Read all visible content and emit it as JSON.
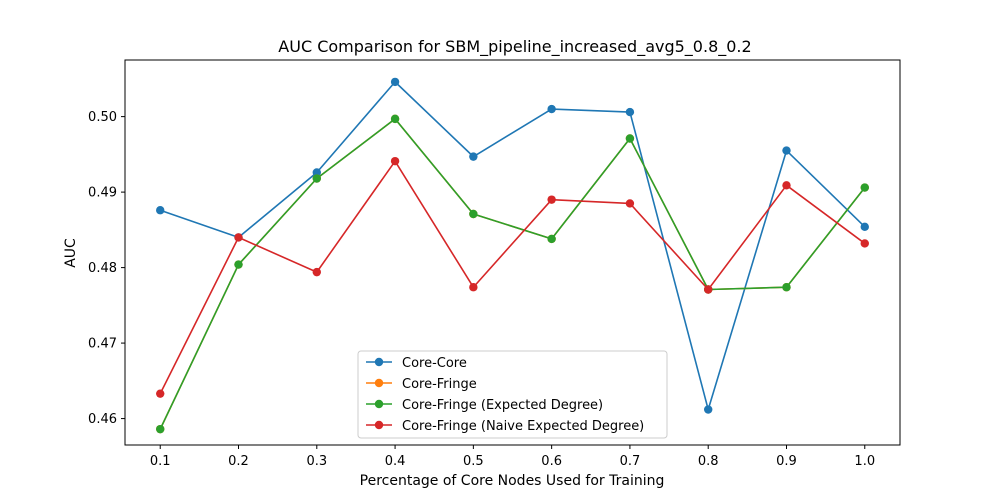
{
  "chart_data": {
    "type": "line",
    "title": "AUC Comparison for SBM_pipeline_increased_avg5_0.8_0.2",
    "xlabel": "Percentage of Core Nodes Used for Training",
    "ylabel": "AUC",
    "x": [
      0.1,
      0.2,
      0.3,
      0.4,
      0.5,
      0.6,
      0.7,
      0.8,
      0.9,
      1.0
    ],
    "xticks": [
      "0.1",
      "0.2",
      "0.3",
      "0.4",
      "0.5",
      "0.6",
      "0.7",
      "0.8",
      "0.9",
      "1.0"
    ],
    "yticks": [
      "0.46",
      "0.47",
      "0.48",
      "0.49",
      "0.50"
    ],
    "xlim": [
      0.055,
      1.045
    ],
    "ylim": [
      0.4565,
      0.5075
    ],
    "grid": false,
    "legend_position": "lower center",
    "series": [
      {
        "name": "Core-Core",
        "color": "#1f77b4",
        "values": [
          0.4876,
          0.484,
          0.4926,
          0.5046,
          0.4947,
          0.501,
          0.5006,
          0.4612,
          0.4955,
          0.4854
        ]
      },
      {
        "name": "Core-Fringe",
        "color": "#ff7f0e",
        "values": [
          0.4586,
          0.4804,
          0.4918,
          0.4997,
          0.4871,
          0.4838,
          0.4971,
          0.4771,
          0.4774,
          0.4906
        ]
      },
      {
        "name": "Core-Fringe (Expected Degree)",
        "color": "#2ca02c",
        "values": [
          0.4586,
          0.4804,
          0.4918,
          0.4997,
          0.4871,
          0.4838,
          0.4971,
          0.4771,
          0.4774,
          0.4906
        ]
      },
      {
        "name": "Core-Fringe (Naive Expected Degree)",
        "color": "#d62728",
        "values": [
          0.4633,
          0.484,
          0.4794,
          0.4941,
          0.4774,
          0.489,
          0.4885,
          0.4771,
          0.4909,
          0.4832
        ]
      }
    ]
  }
}
